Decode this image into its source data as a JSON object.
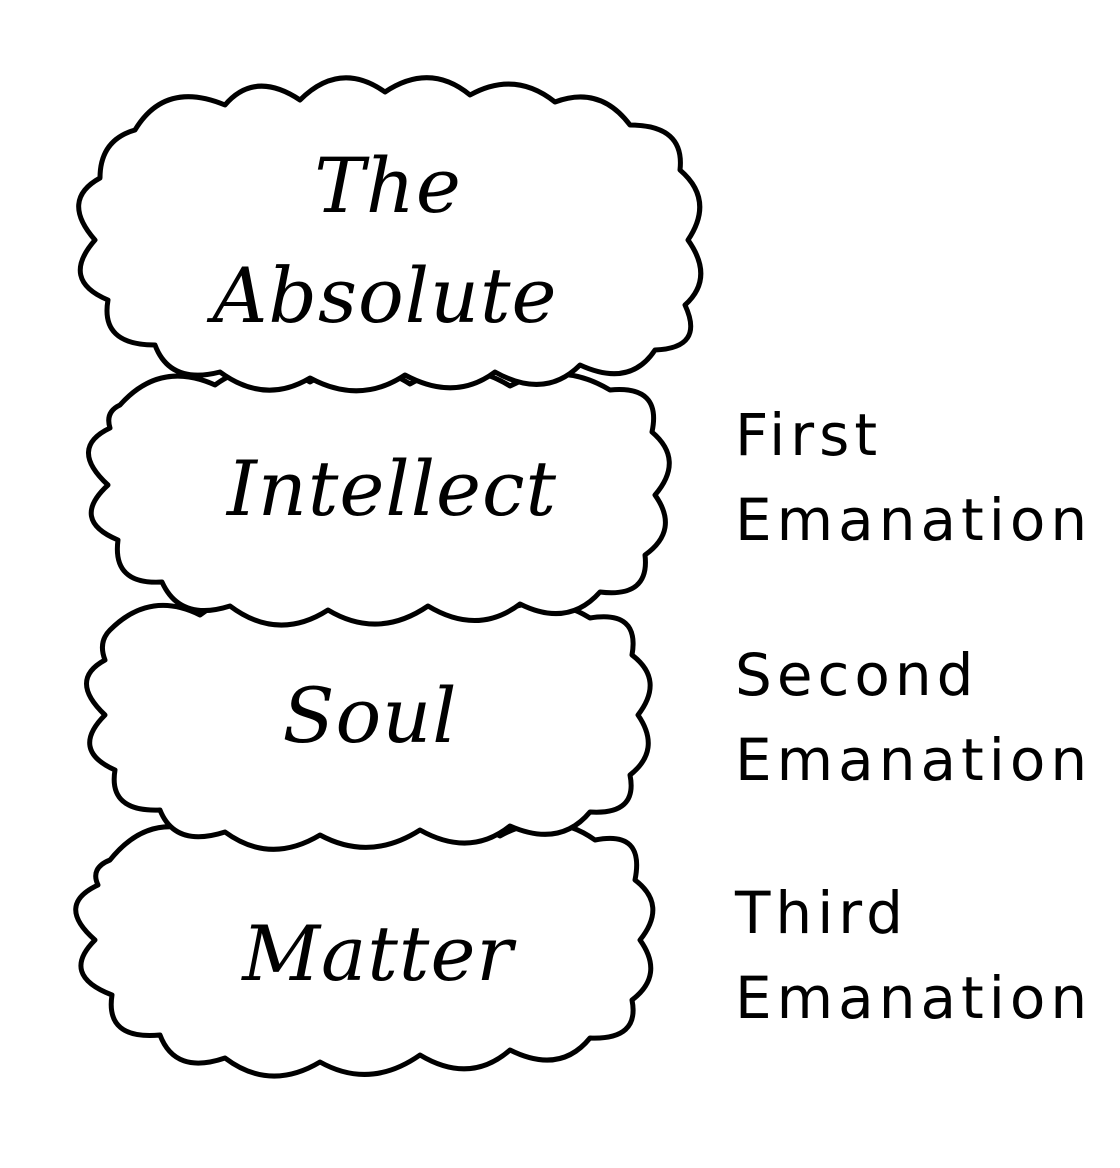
{
  "diagram": {
    "clouds": [
      {
        "line1": "The",
        "line2": "Absolute"
      },
      {
        "label": "Intellect"
      },
      {
        "label": "Soul"
      },
      {
        "label": "Matter"
      }
    ],
    "emanations": [
      {
        "line1": "First",
        "line2": "Emanation"
      },
      {
        "line1": "Second",
        "line2": "Emanation"
      },
      {
        "line1": "Third",
        "line2": "Emanation"
      }
    ],
    "colors": {
      "ink": "#000000",
      "background": "#ffffff"
    }
  }
}
